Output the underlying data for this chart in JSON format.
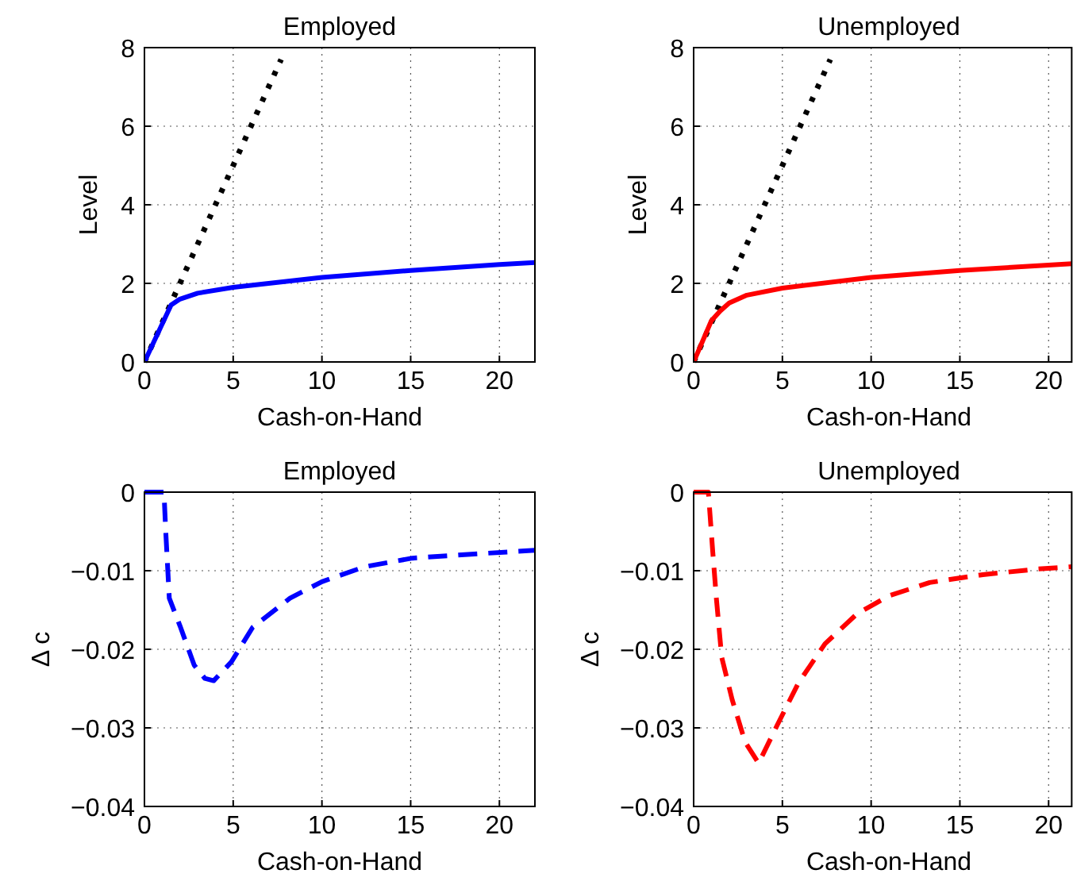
{
  "chart_data": [
    {
      "type": "line",
      "title": "Employed",
      "xlabel": "Cash-on-Hand",
      "ylabel": "Level",
      "xlim": [
        0,
        22
      ],
      "xticks": [
        0,
        5,
        10,
        15,
        20
      ],
      "ylim": [
        0,
        8
      ],
      "yticks": [
        0,
        2,
        4,
        6,
        8
      ],
      "grid": true,
      "series": [
        {
          "color": "#000000",
          "line_style": "dotted",
          "x": [
            0,
            7.7
          ],
          "values": [
            0,
            7.7
          ]
        },
        {
          "color": "#0000ff",
          "line_style": "solid",
          "x": [
            0,
            1.5,
            2,
            3,
            5,
            10,
            15,
            20,
            22
          ],
          "values": [
            0,
            1.45,
            1.6,
            1.75,
            1.9,
            2.15,
            2.33,
            2.48,
            2.53
          ]
        }
      ]
    },
    {
      "type": "line",
      "title": "Unemployed",
      "xlabel": "Cash-on-Hand",
      "ylabel": "Level",
      "xlim": [
        0,
        21.3
      ],
      "xticks": [
        0,
        5,
        10,
        15,
        20
      ],
      "ylim": [
        0,
        8
      ],
      "yticks": [
        0,
        2,
        4,
        6,
        8
      ],
      "grid": true,
      "series": [
        {
          "color": "#000000",
          "line_style": "dotted",
          "x": [
            0,
            7.7
          ],
          "values": [
            0,
            7.7
          ]
        },
        {
          "color": "#ff0000",
          "line_style": "solid",
          "x": [
            0,
            1,
            1.5,
            2,
            3,
            5,
            10,
            15,
            21.3
          ],
          "values": [
            0,
            1.05,
            1.3,
            1.5,
            1.7,
            1.88,
            2.15,
            2.33,
            2.5
          ]
        }
      ]
    },
    {
      "type": "line",
      "title": "Employed",
      "xlabel": "Cash-on-Hand",
      "ylabel": "Δ c",
      "xlim": [
        0,
        22
      ],
      "xticks": [
        0,
        5,
        10,
        15,
        20
      ],
      "ylim": [
        -0.04,
        0
      ],
      "yticks": [
        {
          "value": -0.04,
          "label": "−0.04"
        },
        {
          "value": -0.03,
          "label": "−0.03"
        },
        {
          "value": -0.02,
          "label": "−0.02"
        },
        {
          "value": -0.01,
          "label": "−0.01"
        },
        0
      ],
      "grid": true,
      "series": [
        {
          "color": "#0000ff",
          "line_style": "dashed",
          "x": [
            0,
            1.1,
            1.2,
            1.4,
            2,
            2.8,
            3.4,
            3.9,
            4.9,
            6.1,
            8.2,
            10,
            12.4,
            15.1,
            18.4,
            22
          ],
          "values": [
            0,
            0,
            -0.005,
            -0.0135,
            -0.017,
            -0.022,
            -0.0237,
            -0.024,
            -0.0216,
            -0.0172,
            -0.0135,
            -0.0114,
            -0.0095,
            -0.0084,
            -0.0079,
            -0.0074
          ]
        }
      ]
    },
    {
      "type": "line",
      "title": "Unemployed",
      "xlabel": "Cash-on-Hand",
      "ylabel": "Δ c",
      "xlim": [
        0,
        21.3
      ],
      "xticks": [
        0,
        5,
        10,
        15,
        20
      ],
      "ylim": [
        -0.04,
        0
      ],
      "yticks": [
        {
          "value": -0.04,
          "label": "−0.04"
        },
        {
          "value": -0.03,
          "label": "−0.03"
        },
        {
          "value": -0.02,
          "label": "−0.02"
        },
        {
          "value": -0.01,
          "label": "−0.01"
        },
        0
      ],
      "grid": true,
      "series": [
        {
          "color": "#ff0000",
          "line_style": "dashed",
          "x": [
            0,
            0.83,
            1.07,
            1.28,
            1.58,
            2.17,
            2.9,
            3.66,
            4.7,
            5.9,
            7.4,
            9.2,
            11,
            13.3,
            16.3,
            19.3,
            21.3
          ],
          "values": [
            0,
            0,
            -0.0074,
            -0.0135,
            -0.021,
            -0.0264,
            -0.0318,
            -0.0345,
            -0.0297,
            -0.0243,
            -0.0193,
            -0.0155,
            -0.0132,
            -0.0115,
            -0.0105,
            -0.0098,
            -0.0095
          ]
        }
      ]
    }
  ]
}
